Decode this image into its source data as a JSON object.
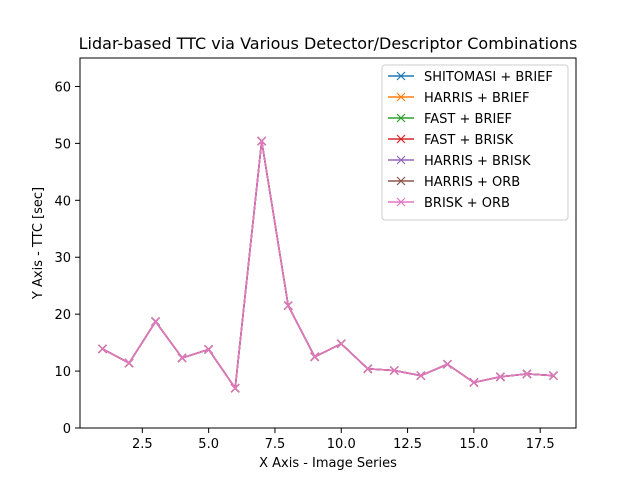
{
  "chart_data": {
    "type": "line",
    "title": "Lidar-based TTC via Various Detector/Descriptor Combinations",
    "xlabel": "X Axis - Image Series",
    "ylabel": "Y Axis - TTC [sec]",
    "xlim": [
      0.15,
      18.85
    ],
    "ylim": [
      0,
      65
    ],
    "x_ticks": [
      2.5,
      5.0,
      7.5,
      10.0,
      12.5,
      15.0,
      17.5
    ],
    "x_tick_labels": [
      "2.5",
      "5.0",
      "7.5",
      "10.0",
      "12.5",
      "15.0",
      "17.5"
    ],
    "y_ticks": [
      0,
      10,
      20,
      30,
      40,
      50,
      60
    ],
    "y_tick_labels": [
      "0",
      "10",
      "20",
      "30",
      "40",
      "50",
      "60"
    ],
    "grid": false,
    "legend_position": "top-right",
    "marker": "x",
    "x": [
      1,
      2,
      3,
      4,
      5,
      6,
      7,
      8,
      9,
      10,
      11,
      12,
      13,
      14,
      15,
      16,
      17,
      18
    ],
    "series": [
      {
        "name": "SHITOMASI + BRIEF",
        "color": "#1f77b4",
        "values": [
          13.9,
          11.4,
          18.7,
          12.3,
          13.8,
          7.0,
          50.4,
          21.5,
          12.5,
          14.8,
          10.4,
          10.1,
          9.2,
          11.2,
          8.0,
          9.0,
          9.5,
          9.2
        ]
      },
      {
        "name": "HARRIS + BRIEF",
        "color": "#ff7f0e",
        "values": [
          13.9,
          11.4,
          18.7,
          12.3,
          13.8,
          7.0,
          50.4,
          21.5,
          12.5,
          14.8,
          10.4,
          10.1,
          9.2,
          11.2,
          8.0,
          9.0,
          9.5,
          9.2
        ]
      },
      {
        "name": "FAST + BRIEF",
        "color": "#2ca02c",
        "values": [
          13.9,
          11.4,
          18.7,
          12.3,
          13.8,
          7.0,
          50.4,
          21.5,
          12.5,
          14.8,
          10.4,
          10.1,
          9.2,
          11.2,
          8.0,
          9.0,
          9.5,
          9.2
        ]
      },
      {
        "name": "FAST + BRISK",
        "color": "#d62728",
        "values": [
          13.9,
          11.4,
          18.7,
          12.3,
          13.8,
          7.0,
          50.4,
          21.5,
          12.5,
          14.8,
          10.4,
          10.1,
          9.2,
          11.2,
          8.0,
          9.0,
          9.5,
          9.2
        ]
      },
      {
        "name": "HARRIS + BRISK",
        "color": "#9467bd",
        "values": [
          13.9,
          11.4,
          18.7,
          12.3,
          13.8,
          7.0,
          50.4,
          21.5,
          12.5,
          14.8,
          10.4,
          10.1,
          9.2,
          11.2,
          8.0,
          9.0,
          9.5,
          9.2
        ]
      },
      {
        "name": "HARRIS + ORB",
        "color": "#8c564b",
        "values": [
          13.9,
          11.4,
          18.7,
          12.3,
          13.8,
          7.0,
          50.4,
          21.5,
          12.5,
          14.8,
          10.4,
          10.1,
          9.2,
          11.2,
          8.0,
          9.0,
          9.5,
          9.2
        ]
      },
      {
        "name": "BRISK + ORB",
        "color": "#e377c2",
        "values": [
          13.9,
          11.4,
          18.7,
          12.3,
          13.8,
          7.0,
          50.4,
          21.5,
          12.5,
          14.8,
          10.4,
          10.1,
          9.2,
          11.2,
          8.0,
          9.0,
          9.5,
          9.2
        ]
      }
    ]
  }
}
